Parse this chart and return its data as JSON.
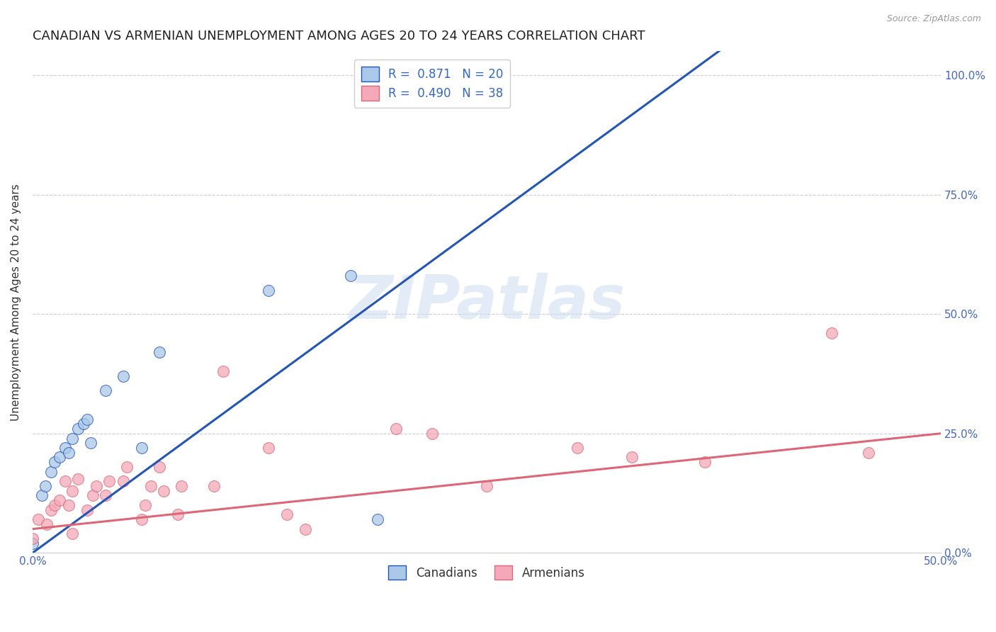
{
  "title": "CANADIAN VS ARMENIAN UNEMPLOYMENT AMONG AGES 20 TO 24 YEARS CORRELATION CHART",
  "source": "Source: ZipAtlas.com",
  "ylabel": "Unemployment Among Ages 20 to 24 years",
  "xlim": [
    0.0,
    0.5
  ],
  "ylim": [
    0.0,
    1.05
  ],
  "xticks": [
    0.0,
    0.1,
    0.2,
    0.3,
    0.4,
    0.5
  ],
  "xtick_labels": [
    "0.0%",
    "",
    "",
    "",
    "",
    "50.0%"
  ],
  "ytick_labels_right": [
    "0.0%",
    "25.0%",
    "50.0%",
    "75.0%",
    "100.0%"
  ],
  "yticks_right": [
    0.0,
    0.25,
    0.5,
    0.75,
    1.0
  ],
  "canadian_color": "#aac8e8",
  "armenian_color": "#f4a8b8",
  "canadian_line_color": "#2255bb",
  "armenian_line_color": "#dd6677",
  "legend_R_canadian": "0.871",
  "legend_N_canadian": "20",
  "legend_R_armenian": "0.490",
  "legend_N_armenian": "38",
  "watermark": "ZIPatlas",
  "canadians_x": [
    0.0,
    0.005,
    0.007,
    0.01,
    0.012,
    0.015,
    0.018,
    0.02,
    0.022,
    0.025,
    0.028,
    0.03,
    0.032,
    0.04,
    0.05,
    0.06,
    0.07,
    0.13,
    0.175,
    0.19
  ],
  "canadians_y": [
    0.02,
    0.12,
    0.14,
    0.17,
    0.19,
    0.2,
    0.22,
    0.21,
    0.24,
    0.26,
    0.27,
    0.28,
    0.23,
    0.34,
    0.37,
    0.22,
    0.42,
    0.55,
    0.58,
    0.07
  ],
  "armenians_x": [
    0.0,
    0.003,
    0.008,
    0.01,
    0.012,
    0.015,
    0.018,
    0.02,
    0.022,
    0.025,
    0.022,
    0.03,
    0.033,
    0.035,
    0.04,
    0.042,
    0.05,
    0.052,
    0.06,
    0.062,
    0.065,
    0.07,
    0.072,
    0.08,
    0.082,
    0.1,
    0.105,
    0.13,
    0.14,
    0.15,
    0.2,
    0.22,
    0.25,
    0.3,
    0.33,
    0.37,
    0.44,
    0.46
  ],
  "armenians_y": [
    0.03,
    0.07,
    0.06,
    0.09,
    0.1,
    0.11,
    0.15,
    0.1,
    0.13,
    0.155,
    0.04,
    0.09,
    0.12,
    0.14,
    0.12,
    0.15,
    0.15,
    0.18,
    0.07,
    0.1,
    0.14,
    0.18,
    0.13,
    0.08,
    0.14,
    0.14,
    0.38,
    0.22,
    0.08,
    0.05,
    0.26,
    0.25,
    0.14,
    0.22,
    0.2,
    0.19,
    0.46,
    0.21
  ],
  "background_color": "#ffffff",
  "grid_color": "#ccccdd",
  "title_fontsize": 13,
  "axis_label_fontsize": 11,
  "tick_fontsize": 11,
  "marker_size": 130
}
